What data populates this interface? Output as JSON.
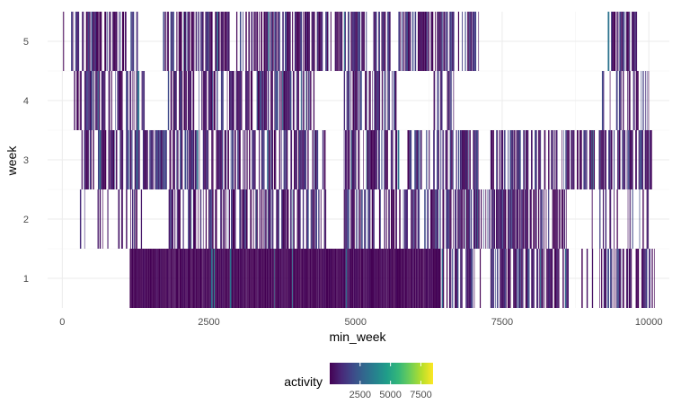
{
  "chart_data": {
    "type": "heatmap",
    "title": "",
    "xlabel": "min_week",
    "ylabel": "week",
    "xlim": [
      -250,
      10350
    ],
    "ylim": [
      0.5,
      5.5
    ],
    "x_ticks": [
      0,
      2500,
      5000,
      7500,
      10000
    ],
    "x_tick_labels": [
      "0",
      "2500",
      "5000",
      "7500",
      "10000"
    ],
    "y_ticks": [
      1,
      2,
      3,
      4,
      5
    ],
    "y_tick_labels": [
      "1",
      "2",
      "3",
      "4",
      "5"
    ],
    "grid": true,
    "legend": {
      "title": "activity",
      "position": "bottom",
      "range": [
        0,
        8500
      ],
      "breaks": [
        2500,
        5000,
        7500
      ],
      "break_labels": [
        "2500",
        "5000",
        "7500"
      ],
      "palette": [
        "#440154",
        "#482878",
        "#3e4989",
        "#31688e",
        "#26828e",
        "#1f9e89",
        "#35b779",
        "#6ece58",
        "#b5de2b",
        "#fde725"
      ]
    },
    "series": [
      {
        "week": 1,
        "segments": [
          [
            1150,
            6450,
            "dense"
          ],
          [
            6450,
            7150,
            "mixed"
          ],
          [
            7300,
            8650,
            "mixed"
          ],
          [
            8850,
            9050,
            "mixed"
          ],
          [
            9150,
            10100,
            "mixed"
          ]
        ]
      },
      {
        "week": 2,
        "segments": [
          [
            0,
            30,
            "sparse"
          ],
          [
            300,
            1400,
            "sparse"
          ],
          [
            1800,
            4500,
            "mixed"
          ],
          [
            4800,
            6100,
            "mixed"
          ],
          [
            6150,
            8600,
            "mixed"
          ],
          [
            9000,
            10000,
            "sparse"
          ]
        ]
      },
      {
        "week": 3,
        "segments": [
          [
            0,
            30,
            "sparse"
          ],
          [
            300,
            1800,
            "mixed"
          ],
          [
            1800,
            4500,
            "mixed"
          ],
          [
            4800,
            6100,
            "mixed"
          ],
          [
            6100,
            7100,
            "mixed"
          ],
          [
            7300,
            8800,
            "mixed"
          ],
          [
            8800,
            10100,
            "mixed"
          ]
        ]
      },
      {
        "week": 4,
        "segments": [
          [
            200,
            1400,
            "mixed"
          ],
          [
            1800,
            4300,
            "mixed"
          ],
          [
            4800,
            5700,
            "mixed"
          ],
          [
            6300,
            6700,
            "mixed"
          ],
          [
            9200,
            10000,
            "mixed"
          ]
        ]
      },
      {
        "week": 5,
        "segments": [
          [
            0,
            30,
            "sparse"
          ],
          [
            150,
            1300,
            "mixed"
          ],
          [
            1700,
            3300,
            "mixed"
          ],
          [
            3300,
            5600,
            "mixed"
          ],
          [
            5700,
            7100,
            "mixed"
          ],
          [
            9300,
            9800,
            "mixed"
          ]
        ]
      }
    ]
  }
}
